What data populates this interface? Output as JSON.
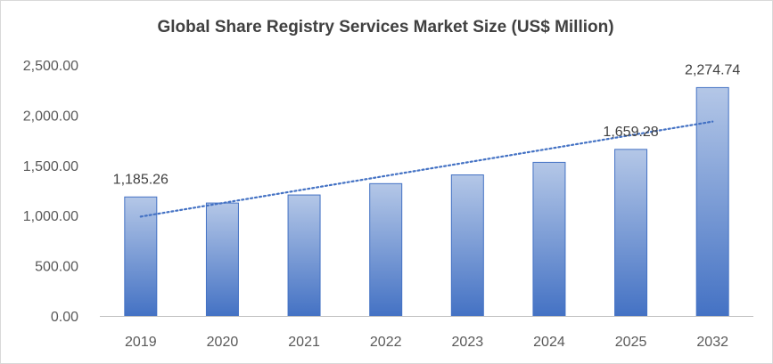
{
  "chart_data": {
    "type": "bar",
    "title": "Global Share Registry Services Market Size (US$ Million)",
    "xlabel": "",
    "ylabel": "",
    "categories": [
      "2019",
      "2020",
      "2021",
      "2022",
      "2023",
      "2024",
      "2025",
      "2032"
    ],
    "values": [
      1185.26,
      1125.0,
      1205.0,
      1318.0,
      1405.0,
      1530.0,
      1659.28,
      2274.74
    ],
    "data_labels": [
      {
        "category": "2019",
        "text": "1,185.26"
      },
      {
        "category": "2025",
        "text": "1,659.28"
      },
      {
        "category": "2032",
        "text": "2,274.74"
      }
    ],
    "ylim": [
      0,
      2500
    ],
    "yticks": [
      0,
      500,
      1000,
      1500,
      2000,
      2500
    ],
    "ytick_labels": [
      "0.00",
      "500.00",
      "1,000.00",
      "1,500.00",
      "2,000.00",
      "2,500.00"
    ],
    "grid": false,
    "legend": "none",
    "trendline": {
      "type": "linear",
      "style": "dotted",
      "color": "#4472c4"
    },
    "colors": {
      "bar_top": "#b4c7e7",
      "bar_bottom": "#4472c4",
      "bar_border": "#4472c4",
      "axis": "#bfbfbf",
      "title": "#404040",
      "tick_text": "#595959"
    }
  }
}
